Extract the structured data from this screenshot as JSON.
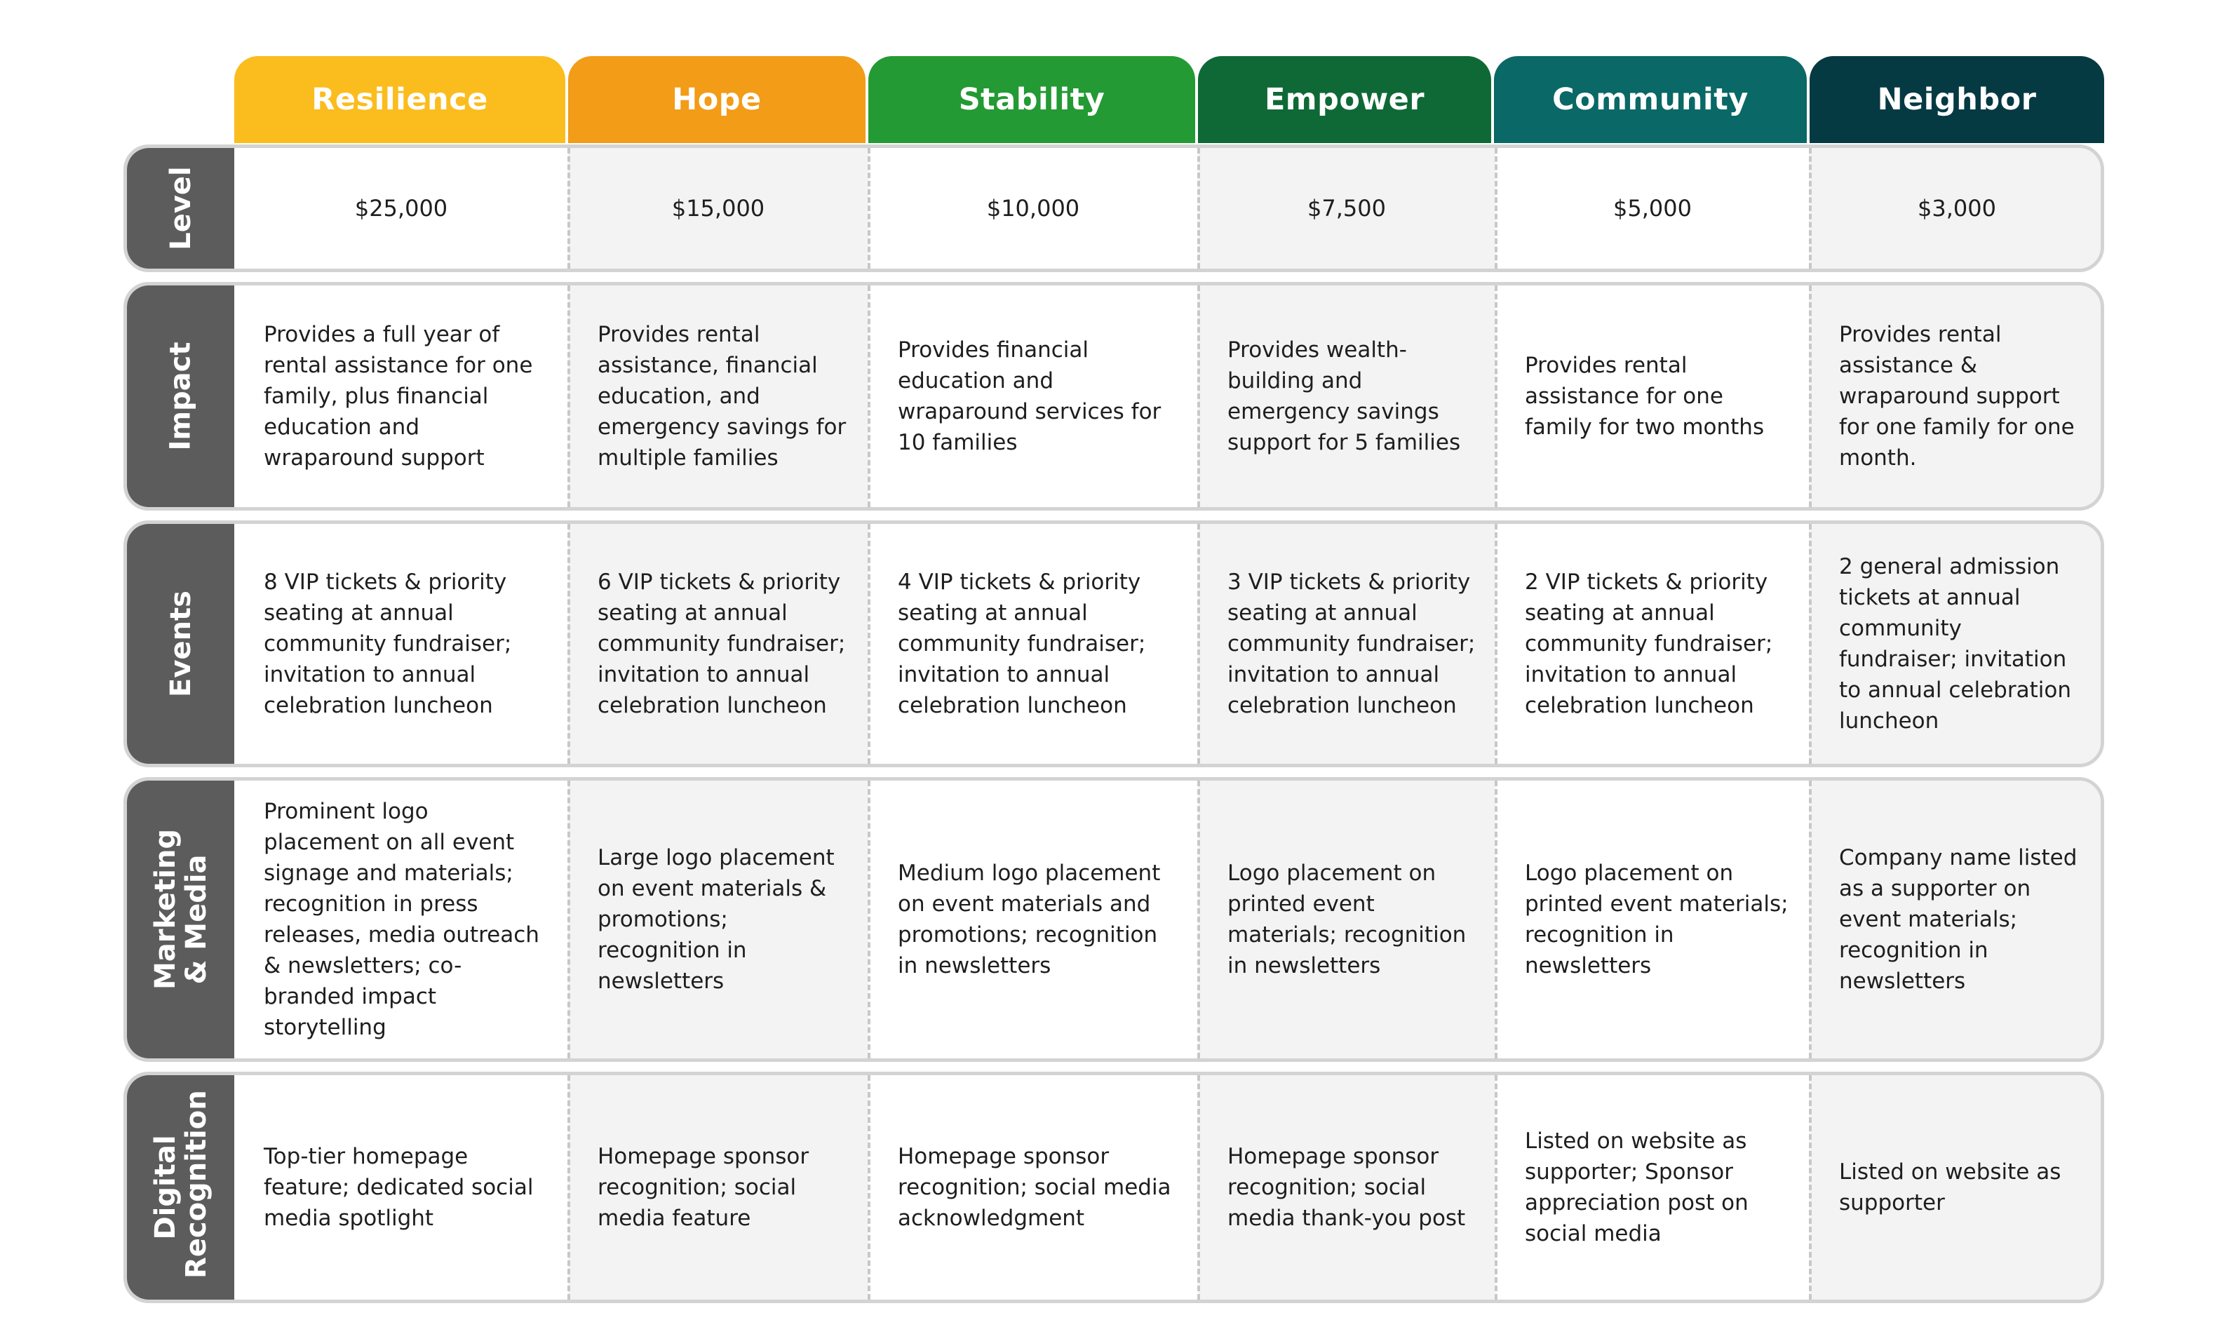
{
  "tiers": [
    {
      "name": "Resilience",
      "color": "#FBBC1E"
    },
    {
      "name": "Hope",
      "color": "#F29C17"
    },
    {
      "name": "Stability",
      "color": "#239A33"
    },
    {
      "name": "Empower",
      "color": "#0F6936"
    },
    {
      "name": "Community",
      "color": "#0A6866"
    },
    {
      "name": "Neighbor",
      "color": "#063A43"
    }
  ],
  "rows": [
    {
      "label": "Level",
      "cells": [
        "$25,000",
        "$15,000",
        "$10,000",
        "$7,500",
        "$5,000",
        "$3,000"
      ]
    },
    {
      "label": "Impact",
      "cells": [
        "Provides a full year of rental assistance for one family, plus financial education and wraparound support",
        "Provides rental assistance, financial education, and emergency savings for multiple families",
        "Provides financial education and wraparound services for 10 families",
        "Provides wealth-building and emergency savings support for 5 families",
        "Provides rental assistance for one family for two months",
        "Provides rental assistance & wraparound support for one family for one month."
      ]
    },
    {
      "label": "Events",
      "cells": [
        "8 VIP tickets & priority seating at annual community fundraiser; invitation to annual celebration luncheon",
        "6 VIP tickets & priority seating at annual community fundraiser; invitation to annual celebration luncheon",
        "4 VIP tickets & priority seating at annual community fundraiser; invitation to annual celebration luncheon",
        "3 VIP tickets & priority seating at annual community fundraiser; invitation to annual celebration luncheon",
        "2 VIP tickets & priority seating at annual community fundraiser; invitation to annual celebration luncheon",
        "2 general admission tickets at annual community fundraiser; invitation to annual celebration luncheon"
      ]
    },
    {
      "label": "Marketing & Media",
      "cells": [
        "Prominent logo placement on all event signage and materials; recognition in press releases, media outreach & newsletters; co-branded impact storytelling",
        "Large logo placement on event materials & promotions; recognition in newsletters",
        "Medium logo placement on event materials and promotions; recognition in newsletters",
        "Logo placement on printed event materials; recognition in newsletters",
        "Logo placement on printed event materials; recognition in newsletters",
        "Company name listed as a supporter on event materials; recognition in newsletters"
      ]
    },
    {
      "label": "Digital Recognition",
      "cells": [
        "Top-tier homepage feature; dedicated social media spotlight",
        "Homepage sponsor recognition; social media feature",
        "Homepage sponsor recognition; social media acknowledgment",
        "Homepage sponsor recognition; social media thank-you post",
        "Listed on website as supporter; Sponsor appreciation post on social media",
        "Listed on website as supporter"
      ]
    }
  ]
}
